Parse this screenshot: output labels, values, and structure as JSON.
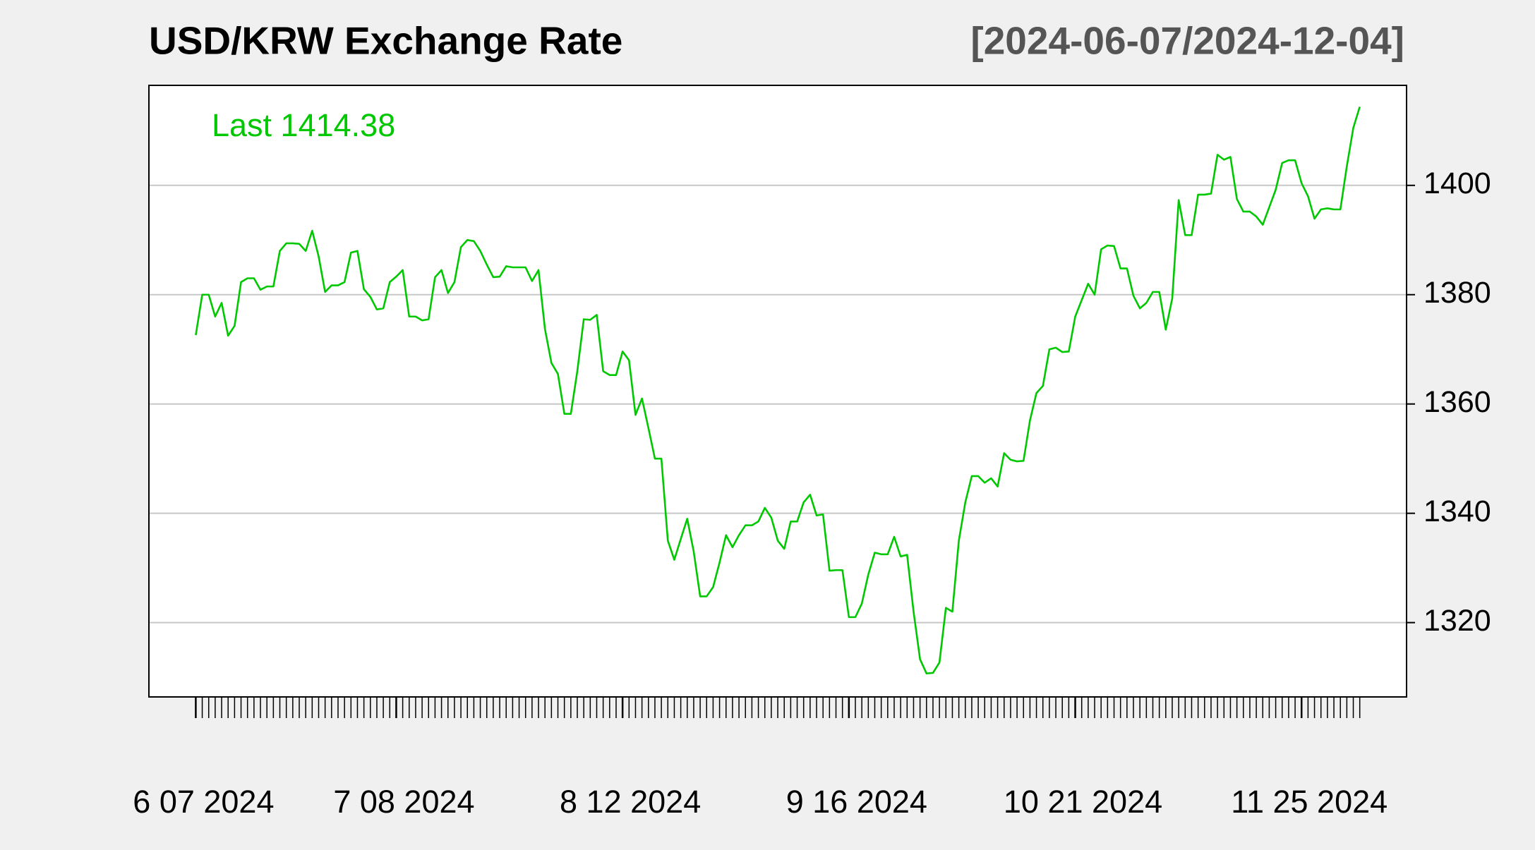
{
  "chart_data": {
    "type": "line",
    "title": "USD/KRW Exchange Rate",
    "subtitle": "[2024-06-07/2024-12-04]",
    "annotation": "Last 1414.38",
    "x": [
      "2024-06-07",
      "2024-06-08",
      "2024-06-09",
      "2024-06-10",
      "2024-06-11",
      "2024-06-12",
      "2024-06-13",
      "2024-06-14",
      "2024-06-15",
      "2024-06-16",
      "2024-06-17",
      "2024-06-18",
      "2024-06-19",
      "2024-06-20",
      "2024-06-21",
      "2024-06-22",
      "2024-06-23",
      "2024-06-24",
      "2024-06-25",
      "2024-06-26",
      "2024-06-27",
      "2024-06-28",
      "2024-06-29",
      "2024-06-30",
      "2024-07-01",
      "2024-07-02",
      "2024-07-03",
      "2024-07-04",
      "2024-07-05",
      "2024-07-06",
      "2024-07-07",
      "2024-07-08",
      "2024-07-09",
      "2024-07-10",
      "2024-07-11",
      "2024-07-12",
      "2024-07-13",
      "2024-07-14",
      "2024-07-15",
      "2024-07-16",
      "2024-07-17",
      "2024-07-18",
      "2024-07-19",
      "2024-07-20",
      "2024-07-21",
      "2024-07-22",
      "2024-07-23",
      "2024-07-24",
      "2024-07-25",
      "2024-07-26",
      "2024-07-27",
      "2024-07-28",
      "2024-07-29",
      "2024-07-30",
      "2024-07-31",
      "2024-08-01",
      "2024-08-02",
      "2024-08-03",
      "2024-08-04",
      "2024-08-05",
      "2024-08-06",
      "2024-08-07",
      "2024-08-08",
      "2024-08-09",
      "2024-08-10",
      "2024-08-11",
      "2024-08-12",
      "2024-08-13",
      "2024-08-14",
      "2024-08-15",
      "2024-08-16",
      "2024-08-17",
      "2024-08-18",
      "2024-08-19",
      "2024-08-20",
      "2024-08-21",
      "2024-08-22",
      "2024-08-23",
      "2024-08-24",
      "2024-08-25",
      "2024-08-26",
      "2024-08-27",
      "2024-08-28",
      "2024-08-29",
      "2024-08-30",
      "2024-08-31",
      "2024-09-01",
      "2024-09-02",
      "2024-09-03",
      "2024-09-04",
      "2024-09-05",
      "2024-09-06",
      "2024-09-07",
      "2024-09-08",
      "2024-09-09",
      "2024-09-10",
      "2024-09-11",
      "2024-09-12",
      "2024-09-13",
      "2024-09-14",
      "2024-09-15",
      "2024-09-16",
      "2024-09-17",
      "2024-09-18",
      "2024-09-19",
      "2024-09-20",
      "2024-09-21",
      "2024-09-22",
      "2024-09-23",
      "2024-09-24",
      "2024-09-25",
      "2024-09-26",
      "2024-09-27",
      "2024-09-28",
      "2024-09-29",
      "2024-09-30",
      "2024-10-01",
      "2024-10-02",
      "2024-10-03",
      "2024-10-04",
      "2024-10-05",
      "2024-10-06",
      "2024-10-07",
      "2024-10-08",
      "2024-10-09",
      "2024-10-10",
      "2024-10-11",
      "2024-10-12",
      "2024-10-13",
      "2024-10-14",
      "2024-10-15",
      "2024-10-16",
      "2024-10-17",
      "2024-10-18",
      "2024-10-19",
      "2024-10-20",
      "2024-10-21",
      "2024-10-22",
      "2024-10-23",
      "2024-10-24",
      "2024-10-25",
      "2024-10-26",
      "2024-10-27",
      "2024-10-28",
      "2024-10-29",
      "2024-10-30",
      "2024-10-31",
      "2024-11-01",
      "2024-11-02",
      "2024-11-03",
      "2024-11-04",
      "2024-11-05",
      "2024-11-06",
      "2024-11-07",
      "2024-11-08",
      "2024-11-09",
      "2024-11-10",
      "2024-11-11",
      "2024-11-12",
      "2024-11-13",
      "2024-11-14",
      "2024-11-15",
      "2024-11-16",
      "2024-11-17",
      "2024-11-18",
      "2024-11-19",
      "2024-11-20",
      "2024-11-21",
      "2024-11-22",
      "2024-11-23",
      "2024-11-24",
      "2024-11-25",
      "2024-11-26",
      "2024-11-27",
      "2024-11-28",
      "2024-11-29",
      "2024-11-30",
      "2024-12-01",
      "2024-12-02",
      "2024-12-03",
      "2024-12-04"
    ],
    "series": [
      {
        "name": "USD/KRW",
        "color": "#00c800",
        "values": [
          1372.6,
          1380,
          1380,
          1376,
          1378.5,
          1372.5,
          1374.3,
          1382.3,
          1383,
          1383,
          1380.9,
          1381.5,
          1381.5,
          1388,
          1389.4,
          1389.4,
          1389.3,
          1388,
          1391.7,
          1387,
          1380.5,
          1381.7,
          1381.7,
          1382.3,
          1387.7,
          1388,
          1381,
          1379.6,
          1377.3,
          1377.5,
          1382.3,
          1383.3,
          1384.5,
          1376,
          1376,
          1375.3,
          1375.5,
          1383.2,
          1384.5,
          1380.3,
          1382.3,
          1388.7,
          1390,
          1389.8,
          1388,
          1385.5,
          1383.2,
          1383.3,
          1385.2,
          1385,
          1385,
          1385,
          1382.5,
          1384.5,
          1373.7,
          1367.5,
          1365.5,
          1358.2,
          1358.2,
          1366,
          1375.5,
          1375.4,
          1376.3,
          1366,
          1365.3,
          1365.3,
          1369.6,
          1368,
          1358,
          1361,
          1355.6,
          1350,
          1350,
          1335,
          1331.5,
          1335.3,
          1339,
          1333,
          1324.8,
          1324.8,
          1326.5,
          1331,
          1336,
          1333.8,
          1336,
          1337.8,
          1337.8,
          1338.5,
          1341,
          1339.2,
          1335,
          1333.5,
          1338.5,
          1338.5,
          1342,
          1343.4,
          1339.6,
          1339.8,
          1329.5,
          1329.6,
          1329.6,
          1321,
          1321,
          1323.5,
          1328.8,
          1332.8,
          1332.5,
          1332.5,
          1335.7,
          1332.1,
          1332.4,
          1322,
          1313.3,
          1310.7,
          1310.8,
          1312.7,
          1322.7,
          1322,
          1335,
          1342,
          1346.8,
          1346.8,
          1345.6,
          1346.4,
          1344.9,
          1351,
          1349.8,
          1349.5,
          1349.6,
          1357,
          1362,
          1363.3,
          1370,
          1370.3,
          1369.5,
          1369.6,
          1376,
          1379,
          1382,
          1380,
          1388.3,
          1389,
          1388.9,
          1384.8,
          1384.8,
          1379.8,
          1377.5,
          1378.5,
          1380.5,
          1380.5,
          1373.6,
          1379.3,
          1397.3,
          1390.9,
          1390.9,
          1398.3,
          1398.3,
          1398.5,
          1405.6,
          1404.7,
          1405.2,
          1397.5,
          1395.2,
          1395.2,
          1394.3,
          1392.8,
          1396,
          1399.2,
          1404.1,
          1404.6,
          1404.6,
          1400.4,
          1398,
          1393.9,
          1395.6,
          1395.8,
          1395.6,
          1395.6,
          1403.5,
          1410.5,
          1414.38
        ]
      }
    ],
    "xticks": [
      {
        "value": "2024-06-07",
        "label": "6 07 2024"
      },
      {
        "value": "2024-07-08",
        "label": "7 08 2024"
      },
      {
        "value": "2024-08-12",
        "label": "8 12 2024"
      },
      {
        "value": "2024-09-16",
        "label": "9 16 2024"
      },
      {
        "value": "2024-10-21",
        "label": "10 21 2024"
      },
      {
        "value": "2024-11-25",
        "label": "11 25 2024"
      }
    ],
    "ylim": [
      1306.4,
      1418.3
    ],
    "yticks": [
      1320,
      1340,
      1360,
      1380,
      1400
    ],
    "grid": true
  }
}
